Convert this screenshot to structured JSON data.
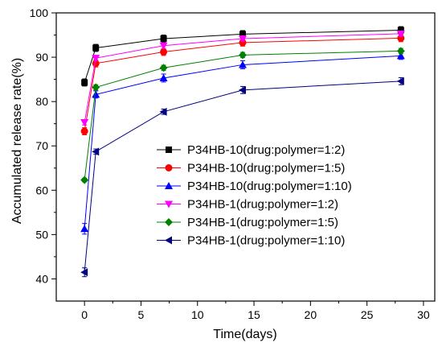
{
  "chart_data": {
    "type": "line",
    "xlabel": "Time(days)",
    "ylabel": "Accumulated release rate(%)",
    "xlim": [
      -2.5,
      31
    ],
    "ylim": [
      35,
      100
    ],
    "x_ticks": [
      0,
      5,
      10,
      15,
      20,
      25,
      30
    ],
    "y_ticks": [
      40,
      50,
      60,
      70,
      80,
      90,
      100
    ],
    "grid": false,
    "legend_position": "center-right",
    "series": [
      {
        "name": "P34HB-10(drug:polymer=1:2)",
        "color": "#000000",
        "marker": "square",
        "x": [
          0,
          1,
          7,
          14,
          28
        ],
        "y": [
          84.3,
          92.1,
          94.2,
          95.2,
          96.1
        ],
        "err": [
          0.8,
          0.8,
          0.8,
          0.8,
          0.8
        ]
      },
      {
        "name": "P34HB-10(drug:polymer=1:5)",
        "color": "#ff0000",
        "marker": "circle",
        "x": [
          0,
          1,
          7,
          14,
          28
        ],
        "y": [
          73.3,
          88.6,
          91.2,
          93.3,
          94.3
        ],
        "err": [
          0.8,
          0.8,
          0.8,
          0.8,
          0.8
        ]
      },
      {
        "name": "P34HB-10(drug:polymer=1:10)",
        "color": "#0000ff",
        "marker": "triangle-up",
        "x": [
          0,
          1,
          7,
          14,
          28
        ],
        "y": [
          51.3,
          81.6,
          85.3,
          88.3,
          90.3
        ],
        "err": [
          1.2,
          0.8,
          0.9,
          0.9,
          0.8
        ]
      },
      {
        "name": "P34HB-1(drug:polymer=1:2)",
        "color": "#ff00ff",
        "marker": "triangle-down",
        "x": [
          0,
          1,
          7,
          14,
          28
        ],
        "y": [
          75.3,
          89.8,
          92.6,
          94.2,
          95.3
        ],
        "err": [
          0.6,
          0.6,
          0.6,
          0.6,
          0.6
        ]
      },
      {
        "name": "P34HB-1(drug:polymer=1:5)",
        "color": "#008000",
        "marker": "diamond",
        "x": [
          0,
          1,
          7,
          14,
          28
        ],
        "y": [
          62.3,
          83.2,
          87.6,
          90.5,
          91.4
        ],
        "err": [
          0.4,
          0.6,
          0.6,
          0.6,
          0.6
        ]
      },
      {
        "name": "P34HB-1(drug:polymer=1:10)",
        "color": "#000080",
        "marker": "triangle-left",
        "x": [
          0,
          1,
          7,
          14,
          28
        ],
        "y": [
          41.5,
          68.7,
          77.7,
          82.6,
          84.6
        ],
        "err": [
          1.0,
          0.6,
          0.6,
          0.8,
          0.8
        ]
      }
    ]
  }
}
